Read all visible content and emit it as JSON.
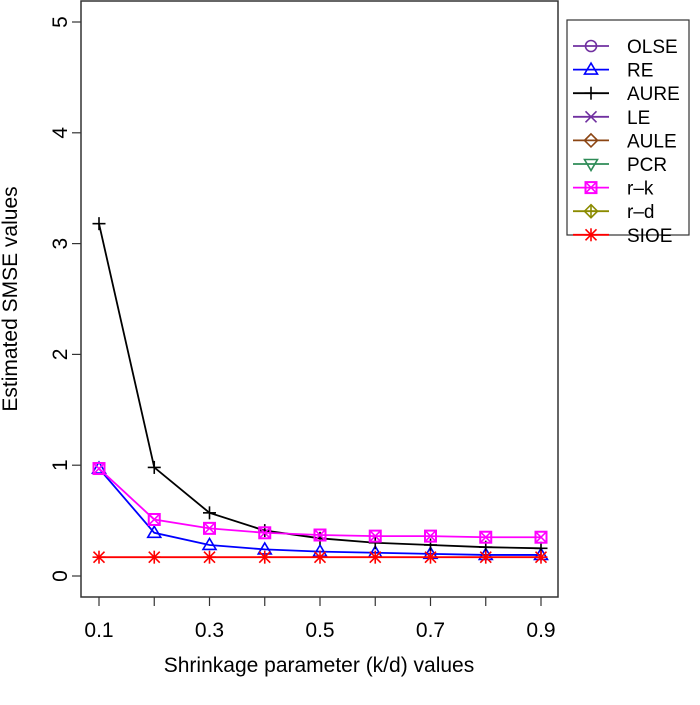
{
  "chart_data": {
    "type": "line",
    "xlabel": "Shrinkage parameter (k/d) values",
    "ylabel": "Estimated SMSE values",
    "xlim": [
      0.05,
      0.95
    ],
    "ylim": [
      0,
      5
    ],
    "x": [
      0.1,
      0.2,
      0.3,
      0.4,
      0.5,
      0.6,
      0.7,
      0.8,
      0.9
    ],
    "x_ticks": [
      "0.1",
      "0.3",
      "0.5",
      "0.7",
      "0.9"
    ],
    "y_ticks": [
      "0",
      "1",
      "2",
      "3",
      "4",
      "5"
    ],
    "grid": false,
    "legend_position": "right",
    "legend": [
      {
        "name": "OLSE",
        "color": "#7030A0",
        "marker": "circle"
      },
      {
        "name": "RE",
        "color": "#0000FF",
        "marker": "triangle-up"
      },
      {
        "name": "AURE",
        "color": "#000000",
        "marker": "plus"
      },
      {
        "name": "LE",
        "color": "#7030A0",
        "marker": "cross"
      },
      {
        "name": "AULE",
        "color": "#8B4513",
        "marker": "diamond"
      },
      {
        "name": "PCR",
        "color": "#2E8B57",
        "marker": "triangle-down"
      },
      {
        "name": "r–k",
        "color": "#FF00FF",
        "marker": "square-cross"
      },
      {
        "name": "r–d",
        "color": "#8B8B00",
        "marker": "diamond-plus"
      },
      {
        "name": "SIOE",
        "color": "#FF0000",
        "marker": "asterisk"
      }
    ],
    "series": [
      {
        "name": "RE",
        "color": "#0000FF",
        "marker": "triangle-up",
        "values": [
          0.97,
          0.39,
          0.28,
          0.24,
          0.22,
          0.21,
          0.2,
          0.19,
          0.19
        ]
      },
      {
        "name": "AURE",
        "color": "#000000",
        "marker": "plus",
        "values": [
          3.18,
          0.98,
          0.57,
          0.41,
          0.34,
          0.3,
          0.28,
          0.26,
          0.25
        ]
      },
      {
        "name": "r–k",
        "color": "#FF00FF",
        "marker": "square-cross",
        "values": [
          0.97,
          0.51,
          0.43,
          0.39,
          0.37,
          0.36,
          0.36,
          0.35,
          0.35
        ]
      },
      {
        "name": "SIOE",
        "color": "#FF0000",
        "marker": "asterisk",
        "values": [
          0.17,
          0.17,
          0.17,
          0.17,
          0.17,
          0.17,
          0.17,
          0.17,
          0.17
        ]
      }
    ]
  }
}
